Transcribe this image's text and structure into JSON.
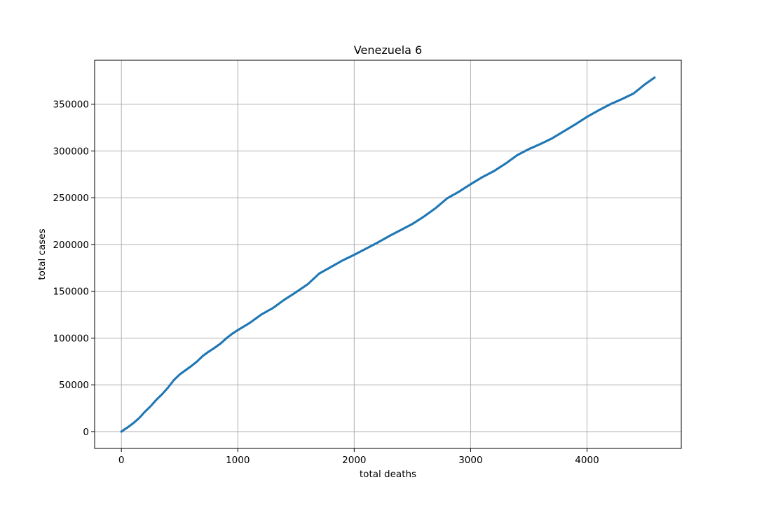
{
  "chart_data": {
    "type": "scatter",
    "title": "Venezuela 6",
    "xlabel": "total deaths",
    "ylabel": "total cases",
    "xlim": [
      -230,
      4810
    ],
    "ylim": [
      -18000,
      397000
    ],
    "xticks": [
      0,
      1000,
      2000,
      3000,
      4000
    ],
    "yticks": [
      0,
      50000,
      100000,
      150000,
      200000,
      250000,
      300000,
      350000
    ],
    "grid": true,
    "marker_color": "#1f77b4",
    "series": [
      {
        "points": [
          [
            0,
            0
          ],
          [
            10,
            800
          ],
          [
            25,
            2200
          ],
          [
            50,
            4200
          ],
          [
            75,
            6500
          ],
          [
            100,
            8800
          ],
          [
            125,
            11500
          ],
          [
            150,
            14200
          ],
          [
            175,
            17500
          ],
          [
            200,
            21000
          ],
          [
            250,
            27000
          ],
          [
            300,
            34000
          ],
          [
            350,
            40000
          ],
          [
            400,
            47000
          ],
          [
            450,
            55000
          ],
          [
            500,
            61000
          ],
          [
            550,
            65500
          ],
          [
            600,
            70000
          ],
          [
            650,
            75000
          ],
          [
            700,
            81000
          ],
          [
            750,
            85500
          ],
          [
            800,
            89500
          ],
          [
            850,
            94000
          ],
          [
            900,
            99500
          ],
          [
            950,
            104500
          ],
          [
            1000,
            108500
          ],
          [
            1100,
            116000
          ],
          [
            1200,
            125000
          ],
          [
            1300,
            132000
          ],
          [
            1400,
            141000
          ],
          [
            1500,
            149000
          ],
          [
            1600,
            157500
          ],
          [
            1700,
            169000
          ],
          [
            1800,
            176000
          ],
          [
            1900,
            183000
          ],
          [
            2000,
            189000
          ],
          [
            2100,
            195500
          ],
          [
            2200,
            202000
          ],
          [
            2300,
            209000
          ],
          [
            2400,
            215500
          ],
          [
            2500,
            222000
          ],
          [
            2600,
            230000
          ],
          [
            2700,
            239000
          ],
          [
            2800,
            249500
          ],
          [
            2900,
            256500
          ],
          [
            3000,
            264500
          ],
          [
            3100,
            272000
          ],
          [
            3200,
            278500
          ],
          [
            3300,
            286500
          ],
          [
            3400,
            295500
          ],
          [
            3500,
            302000
          ],
          [
            3600,
            307500
          ],
          [
            3700,
            313500
          ],
          [
            3800,
            321000
          ],
          [
            3900,
            328500
          ],
          [
            4000,
            336500
          ],
          [
            4100,
            343500
          ],
          [
            4200,
            350000
          ],
          [
            4300,
            355500
          ],
          [
            4400,
            361500
          ],
          [
            4500,
            371500
          ],
          [
            4580,
            378500
          ]
        ]
      }
    ]
  }
}
